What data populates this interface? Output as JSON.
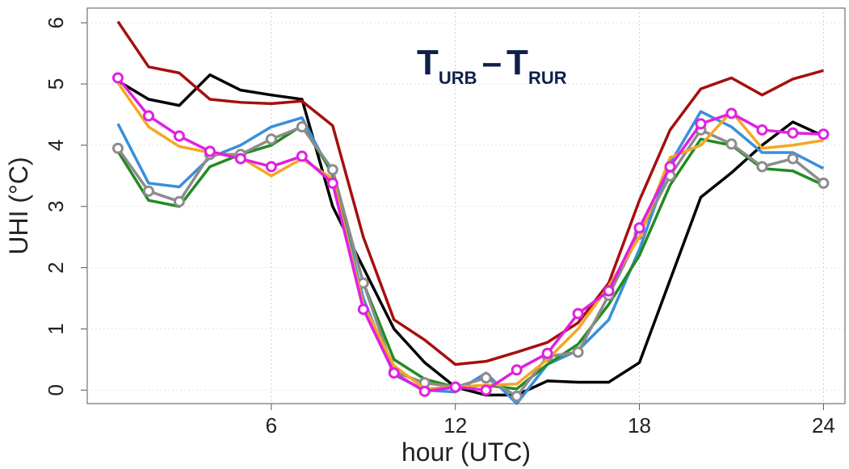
{
  "chart_data": {
    "type": "line",
    "title": {
      "main1": "T",
      "sub1": "URB",
      "sep": "–",
      "main2": "T",
      "sub2": "RUR"
    },
    "xlabel": "hour (UTC)",
    "ylabel": "UHI (°C)",
    "x": [
      1,
      2,
      3,
      4,
      5,
      6,
      7,
      8,
      9,
      10,
      11,
      12,
      13,
      14,
      15,
      16,
      17,
      18,
      19,
      20,
      21,
      22,
      23,
      24
    ],
    "xlim": [
      0,
      24.7
    ],
    "ylim": [
      -0.22,
      6.24
    ],
    "xticks": [
      6,
      12,
      18,
      24
    ],
    "yticks": [
      0,
      1,
      2,
      3,
      4,
      5,
      6
    ],
    "grid": true,
    "series": [
      {
        "color": "#000000",
        "markers": false,
        "values": [
          5.05,
          4.75,
          4.65,
          5.15,
          4.9,
          4.82,
          4.75,
          3.0,
          2.0,
          1.0,
          0.45,
          0.05,
          -0.08,
          -0.08,
          0.15,
          0.13,
          0.13,
          0.45,
          1.8,
          3.15,
          3.55,
          4.0,
          4.38,
          4.15
        ]
      },
      {
        "color": "#a50f0f",
        "markers": false,
        "values": [
          6.02,
          5.28,
          5.18,
          4.75,
          4.7,
          4.68,
          4.72,
          4.32,
          2.5,
          1.15,
          0.82,
          0.42,
          0.47,
          0.62,
          0.78,
          1.1,
          1.75,
          3.1,
          4.25,
          4.92,
          5.1,
          4.82,
          5.08,
          5.22
        ]
      },
      {
        "color": "#3a8fd9",
        "markers": false,
        "values": [
          4.35,
          3.38,
          3.32,
          3.8,
          4.0,
          4.3,
          4.45,
          3.5,
          1.5,
          0.25,
          0.0,
          -0.03,
          0.28,
          -0.22,
          0.42,
          0.65,
          1.15,
          2.3,
          3.7,
          4.55,
          4.3,
          3.88,
          3.88,
          3.62
        ]
      },
      {
        "color": "#228b22",
        "markers": false,
        "values": [
          3.9,
          3.1,
          3.0,
          3.65,
          3.85,
          4.0,
          4.32,
          3.55,
          1.75,
          0.5,
          0.18,
          0.05,
          0.08,
          0.02,
          0.42,
          0.75,
          1.4,
          2.2,
          3.35,
          4.1,
          4.0,
          3.62,
          3.58,
          3.35
        ]
      },
      {
        "color": "#8c8c8c",
        "markers": true,
        "values": [
          3.95,
          3.25,
          3.08,
          3.85,
          3.85,
          4.1,
          4.3,
          3.6,
          1.75,
          0.3,
          0.12,
          0.05,
          0.2,
          -0.1,
          0.55,
          0.62,
          1.55,
          2.55,
          3.5,
          4.25,
          4.02,
          3.65,
          3.78,
          3.38
        ]
      },
      {
        "color": "#f5a623",
        "markers": false,
        "values": [
          5.02,
          4.3,
          3.98,
          3.88,
          3.8,
          3.5,
          3.78,
          3.45,
          1.4,
          0.4,
          0.02,
          0.05,
          0.08,
          0.1,
          0.5,
          1.0,
          1.7,
          2.5,
          3.8,
          4.0,
          4.55,
          3.95,
          4.0,
          4.08
        ]
      },
      {
        "color": "#e020e0",
        "markers": true,
        "values": [
          5.1,
          4.48,
          4.15,
          3.9,
          3.78,
          3.65,
          3.82,
          3.38,
          1.32,
          0.28,
          -0.02,
          0.05,
          0.0,
          0.33,
          0.6,
          1.25,
          1.62,
          2.65,
          3.65,
          4.35,
          4.52,
          4.25,
          4.2,
          4.18
        ]
      }
    ]
  }
}
